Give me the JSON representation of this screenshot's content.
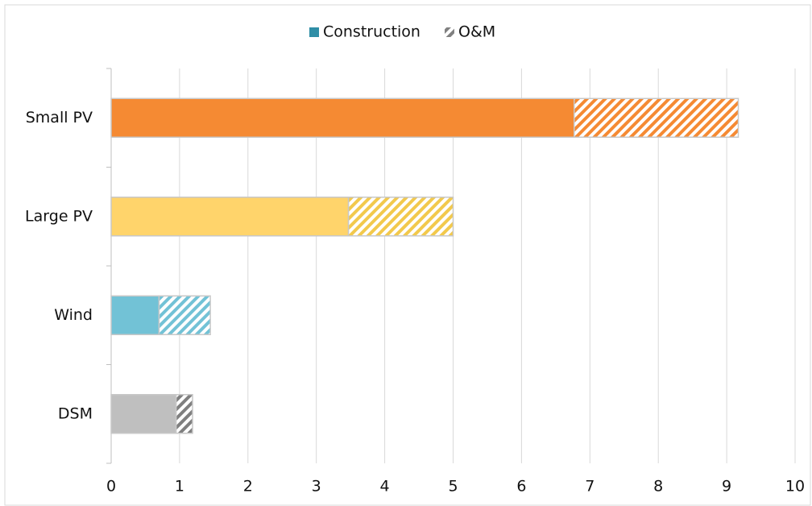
{
  "chart_data": {
    "type": "stacked-barh",
    "categories": [
      "Small PV",
      "Large PV",
      "Wind",
      "DSM"
    ],
    "series": [
      {
        "name": "Construction",
        "color": "#2f8ea6",
        "point_colors": [
          "#f58a33",
          "#ffd46b",
          "#72c2d6",
          "#bfbfbf"
        ],
        "hatched": false,
        "values": [
          6.77,
          3.47,
          0.7,
          0.95
        ]
      },
      {
        "name": "O&M",
        "color": "#808080",
        "point_colors": [
          "#f58a33",
          "#f2c94c",
          "#72c2d6",
          "#7f7f7f"
        ],
        "hatched": true,
        "values": [
          2.4,
          1.53,
          0.75,
          0.24
        ]
      }
    ],
    "xlim": [
      0,
      10
    ],
    "xticks": [
      0,
      1,
      2,
      3,
      4,
      5,
      6,
      7,
      8,
      9,
      10
    ],
    "grid": true,
    "legend": "top"
  }
}
